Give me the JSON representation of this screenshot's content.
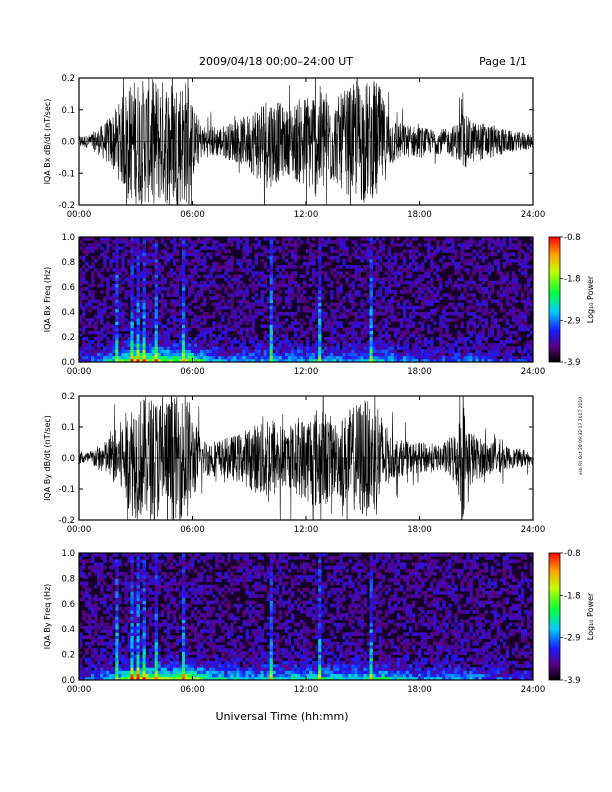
{
  "header": {
    "title": "2009/04/18  00:00–24:00 UT",
    "page": "Page 1/1"
  },
  "side_label": "ssh Fri Oct 28 09:32:17 2017 2019",
  "xlabel": "Universal Time (hh:mm)",
  "colorbar": {
    "label": "Log₁₀ Power",
    "ticks": [
      "-0.8",
      "-1.8",
      "-2.9",
      "-3.9"
    ],
    "colormap": "rainbow",
    "range": [
      -3.9,
      -0.8
    ]
  },
  "colors": {
    "background": "#ffffff",
    "trace": "#000000",
    "low_power": "#000000",
    "high_power": "#ff0000"
  },
  "chart_data": [
    {
      "type": "line",
      "title": "",
      "ylabel": "IQA Bx dB/dt (nT/sec)",
      "xlabel": "",
      "x_ticks": [
        "00:00",
        "06:00",
        "12:00",
        "18:00",
        "24:00"
      ],
      "y_ticks": [
        "0.2",
        "0.1",
        "0.0",
        "-0.1",
        "-0.2"
      ],
      "xlim_hours": [
        0,
        24
      ],
      "ylim": [
        -0.2,
        0.2
      ],
      "grid": false,
      "series": [
        {
          "x_hours": [
            0,
            0.5,
            1,
            1.5,
            2,
            2.5,
            2.9,
            3.1,
            3.5,
            4,
            4.5,
            5,
            5.5,
            5.8,
            6,
            6.5,
            7,
            7.5,
            8,
            8.5,
            9,
            9.5,
            10,
            10.5,
            11,
            11.5,
            12,
            12.5,
            13,
            13.5,
            14,
            14.5,
            15,
            15.5,
            15.8,
            16,
            16.5,
            17,
            17.5,
            18,
            18.5,
            19,
            19.5,
            20,
            20.3,
            20.5,
            21,
            21.5,
            22,
            22.5,
            23,
            23.5,
            24
          ],
          "envelope": [
            0.02,
            0.02,
            0.04,
            0.07,
            0.11,
            0.17,
            0.2,
            0.2,
            0.2,
            0.2,
            0.2,
            0.2,
            0.2,
            0.2,
            0.12,
            0.05,
            0.05,
            0.05,
            0.06,
            0.07,
            0.09,
            0.13,
            0.15,
            0.13,
            0.1,
            0.13,
            0.15,
            0.18,
            0.17,
            0.13,
            0.16,
            0.18,
            0.2,
            0.18,
            0.2,
            0.15,
            0.08,
            0.06,
            0.05,
            0.05,
            0.04,
            0.04,
            0.04,
            0.06,
            0.1,
            0.08,
            0.06,
            0.06,
            0.05,
            0.04,
            0.03,
            0.03,
            0.02
          ]
        }
      ]
    },
    {
      "type": "heatmap",
      "title": "",
      "ylabel": "IQA Bx Freq (Hz)",
      "xlabel": "",
      "x_ticks": [
        "00:00",
        "06:00",
        "12:00",
        "18:00",
        "24:00"
      ],
      "y_ticks": [
        "1.0",
        "0.8",
        "0.6",
        "0.4",
        "0.2",
        "0.0"
      ],
      "xlim_hours": [
        0,
        24
      ],
      "ylim": [
        0,
        1.0
      ],
      "zlim": [
        -3.9,
        -0.8
      ],
      "bursts_hours": [
        2.0,
        2.8,
        3.1,
        3.4,
        4.1,
        5.5,
        10.1,
        12.7,
        15.5
      ],
      "activity": {
        "x_hours": [
          0,
          2,
          3,
          4,
          5,
          6,
          7,
          8,
          10,
          12,
          14,
          16,
          17,
          18,
          20,
          21,
          22,
          24
        ],
        "level": [
          0.15,
          0.45,
          0.9,
          0.7,
          0.65,
          0.75,
          0.35,
          0.3,
          0.35,
          0.35,
          0.35,
          0.4,
          0.3,
          0.2,
          0.2,
          0.25,
          0.15,
          0.12
        ]
      }
    },
    {
      "type": "line",
      "title": "",
      "ylabel": "IQA By dB/dt (nT/sec)",
      "xlabel": "",
      "x_ticks": [
        "00:00",
        "06:00",
        "12:00",
        "18:00",
        "24:00"
      ],
      "y_ticks": [
        "0.2",
        "0.1",
        "0.0",
        "-0.1",
        "-0.2"
      ],
      "xlim_hours": [
        0,
        24
      ],
      "ylim": [
        -0.2,
        0.2
      ],
      "grid": false,
      "series": [
        {
          "x_hours": [
            0,
            0.5,
            1,
            1.5,
            2,
            2.5,
            2.9,
            3.1,
            3.5,
            4,
            4.5,
            5,
            5.5,
            5.8,
            6,
            6.5,
            7,
            7.5,
            8,
            8.5,
            9,
            9.5,
            10,
            10.5,
            11,
            11.5,
            12,
            12.5,
            13,
            13.5,
            14,
            14.5,
            15,
            15.5,
            15.8,
            16,
            16.5,
            17,
            17.5,
            18,
            18.5,
            19,
            19.5,
            20,
            20.3,
            20.5,
            21,
            21.5,
            22,
            22.5,
            23,
            23.5,
            24
          ],
          "envelope": [
            0.02,
            0.02,
            0.04,
            0.06,
            0.1,
            0.15,
            0.2,
            0.2,
            0.2,
            0.2,
            0.2,
            0.2,
            0.2,
            0.2,
            0.14,
            0.06,
            0.06,
            0.06,
            0.07,
            0.08,
            0.1,
            0.12,
            0.16,
            0.12,
            0.09,
            0.12,
            0.14,
            0.17,
            0.16,
            0.12,
            0.14,
            0.17,
            0.2,
            0.17,
            0.2,
            0.14,
            0.07,
            0.06,
            0.05,
            0.05,
            0.05,
            0.04,
            0.06,
            0.1,
            0.2,
            0.12,
            0.07,
            0.06,
            0.05,
            0.04,
            0.03,
            0.03,
            0.02
          ]
        }
      ]
    },
    {
      "type": "heatmap",
      "title": "",
      "ylabel": "IQA By Freq (Hz)",
      "xlabel": "",
      "x_ticks": [
        "00:00",
        "06:00",
        "12:00",
        "18:00",
        "24:00"
      ],
      "y_ticks": [
        "1.0",
        "0.8",
        "0.6",
        "0.4",
        "0.2",
        "0.0"
      ],
      "xlim_hours": [
        0,
        24
      ],
      "ylim": [
        0,
        1.0
      ],
      "zlim": [
        -3.9,
        -0.8
      ],
      "bursts_hours": [
        2.0,
        2.8,
        3.1,
        3.4,
        4.1,
        5.5,
        10.1,
        12.7,
        15.5
      ],
      "activity": {
        "x_hours": [
          0,
          2,
          3,
          4,
          5,
          6,
          7,
          8,
          10,
          12,
          14,
          16,
          17,
          18,
          20,
          21,
          22,
          24
        ],
        "level": [
          0.15,
          0.45,
          0.95,
          0.75,
          0.7,
          0.8,
          0.45,
          0.4,
          0.45,
          0.45,
          0.45,
          0.5,
          0.4,
          0.3,
          0.3,
          0.3,
          0.2,
          0.15
        ]
      }
    }
  ]
}
